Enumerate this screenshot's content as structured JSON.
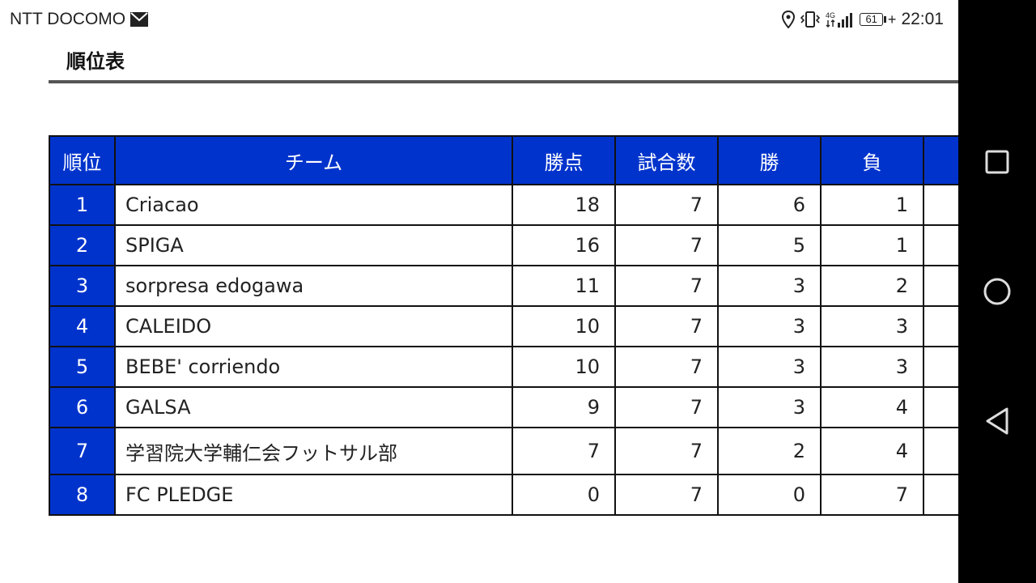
{
  "status_bar": {
    "carrier": "NTT DOCOMO",
    "battery_level": "61",
    "time": "22:01",
    "network": "4G"
  },
  "page": {
    "title": "順位表"
  },
  "table": {
    "headers": [
      "順位",
      "チーム",
      "勝点",
      "試合数",
      "勝",
      "負"
    ],
    "rows": [
      {
        "rank": "1",
        "team": "Criacao",
        "points": "18",
        "played": "7",
        "wins": "6",
        "losses": "1"
      },
      {
        "rank": "2",
        "team": "SPIGA",
        "points": "16",
        "played": "7",
        "wins": "5",
        "losses": "1"
      },
      {
        "rank": "3",
        "team": "sorpresa edogawa",
        "points": "11",
        "played": "7",
        "wins": "3",
        "losses": "2"
      },
      {
        "rank": "4",
        "team": "CALEIDO",
        "points": "10",
        "played": "7",
        "wins": "3",
        "losses": "3"
      },
      {
        "rank": "5",
        "team": "BEBE' corriendo",
        "points": "10",
        "played": "7",
        "wins": "3",
        "losses": "3"
      },
      {
        "rank": "6",
        "team": "GALSA",
        "points": "9",
        "played": "7",
        "wins": "3",
        "losses": "4"
      },
      {
        "rank": "7",
        "team": "学習院大学輔仁会フットサル部",
        "points": "7",
        "played": "7",
        "wins": "2",
        "losses": "4"
      },
      {
        "rank": "8",
        "team": "FC PLEDGE",
        "points": "0",
        "played": "7",
        "wins": "0",
        "losses": "7"
      }
    ]
  },
  "colors": {
    "header_blue": "#0033cc",
    "navbar": "#000000"
  },
  "nav_icons": [
    "recent-apps-icon",
    "home-icon",
    "back-icon"
  ]
}
